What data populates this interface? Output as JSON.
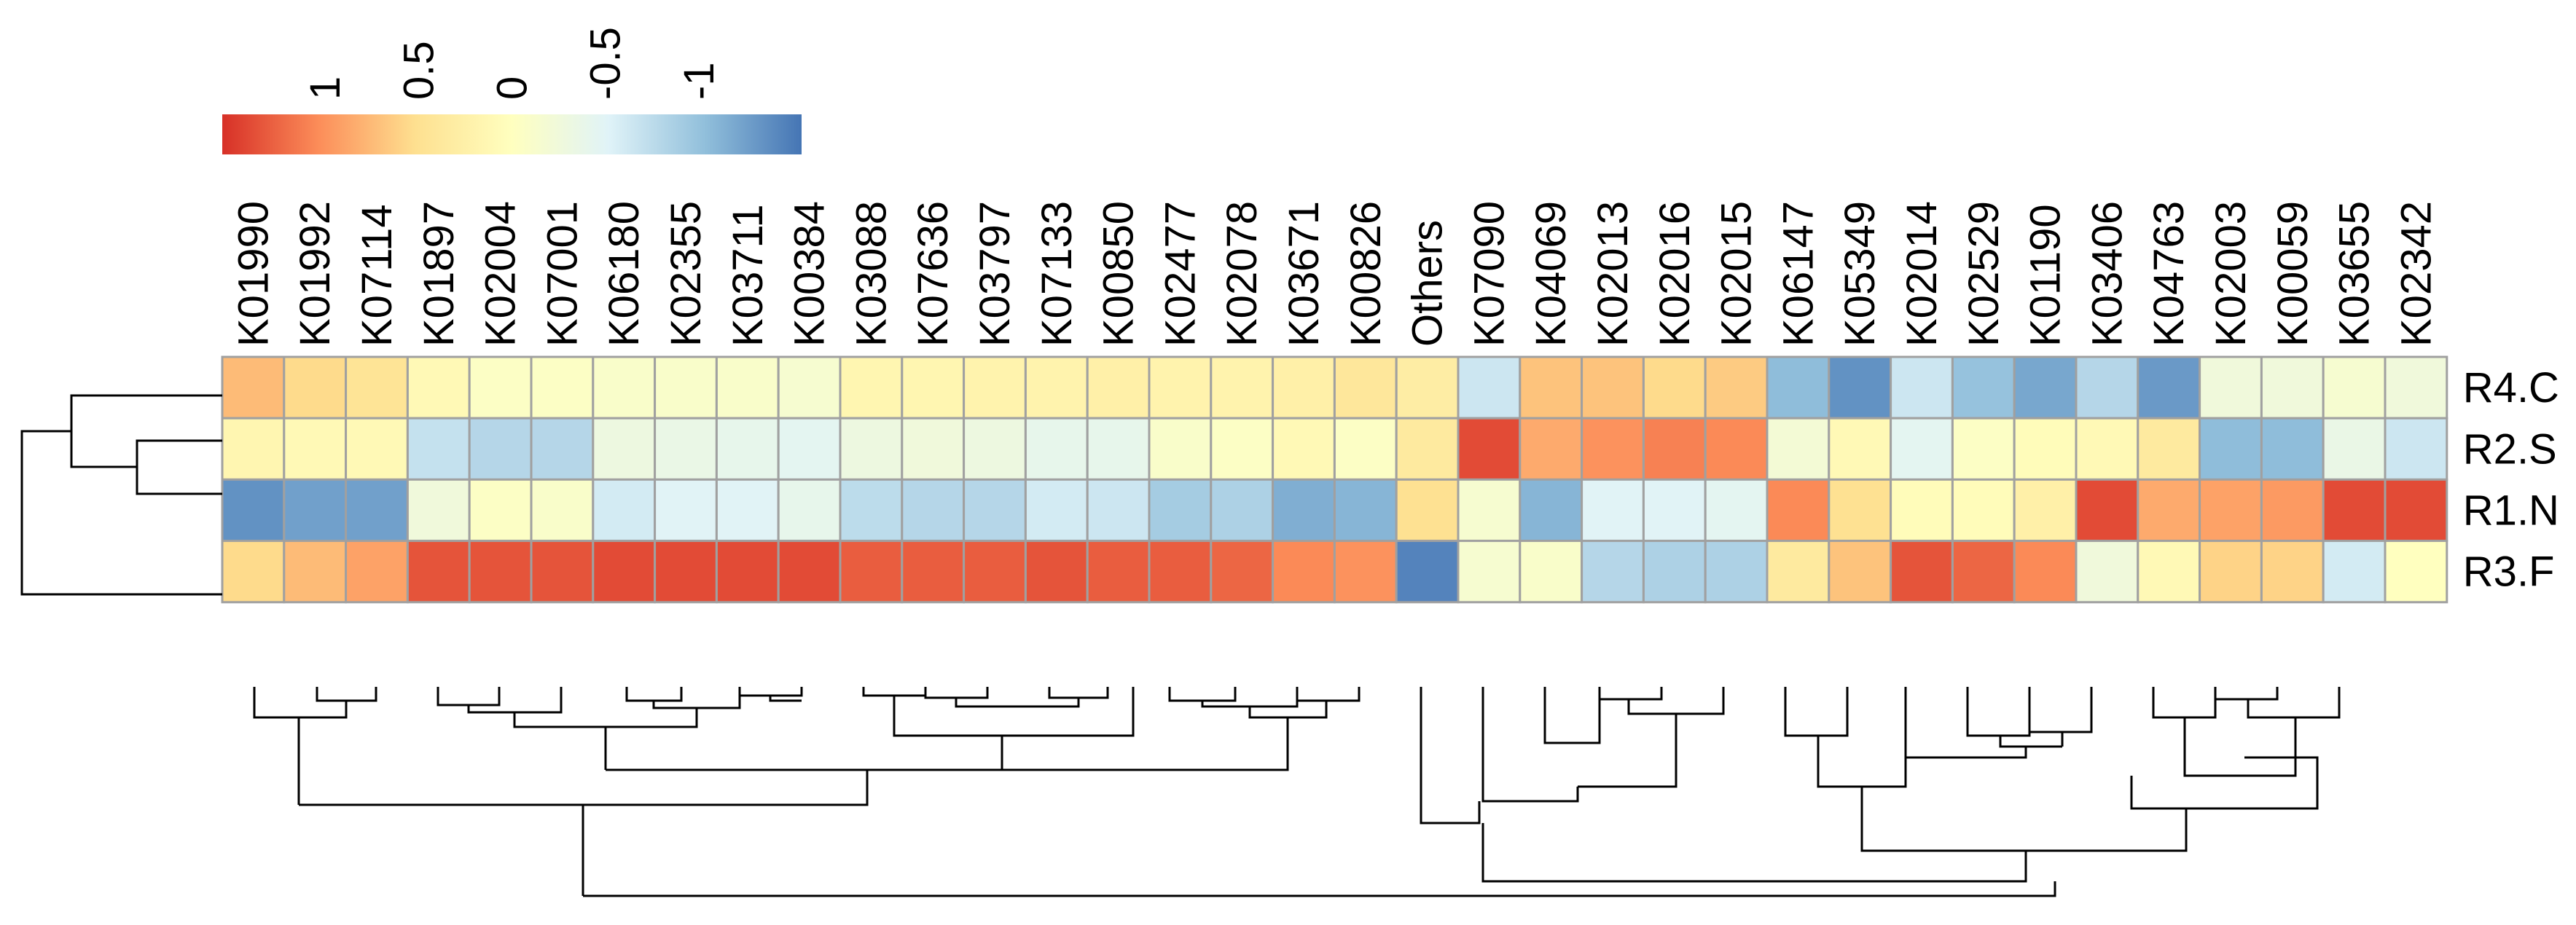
{
  "chart_data": {
    "type": "heatmap",
    "columns": [
      "K01990",
      "K01992",
      "K07114",
      "K01897",
      "K02004",
      "K07001",
      "K06180",
      "K02355",
      "K03711",
      "K00384",
      "K03088",
      "K07636",
      "K03797",
      "K07133",
      "K00850",
      "K02477",
      "K02078",
      "K03671",
      "K00826",
      "Others",
      "K07090",
      "K04069",
      "K02013",
      "K02016",
      "K02015",
      "K06147",
      "K05349",
      "K02014",
      "K02529",
      "K01190",
      "K03406",
      "K04763",
      "K02003",
      "K00059",
      "K03655",
      "K02342"
    ],
    "rows": [
      "R4.C",
      "R2.S",
      "R1.N",
      "R3.F"
    ],
    "values": [
      [
        0.75,
        0.55,
        0.45,
        0.1,
        -0.05,
        -0.05,
        -0.1,
        -0.1,
        -0.1,
        -0.15,
        0.15,
        0.15,
        0.2,
        0.2,
        0.25,
        0.2,
        0.2,
        0.25,
        0.4,
        0.3,
        -0.65,
        0.7,
        0.7,
        0.55,
        0.65,
        -1.05,
        -1.35,
        -0.65,
        -1.0,
        -1.2,
        -0.8,
        -1.3,
        -0.25,
        -0.25,
        -0.15,
        -0.25
      ],
      [
        0.15,
        0.1,
        0.1,
        -0.7,
        -0.8,
        -0.8,
        -0.3,
        -0.35,
        -0.4,
        -0.45,
        -0.3,
        -0.25,
        -0.3,
        -0.4,
        -0.4,
        -0.1,
        -0.05,
        0.1,
        -0.05,
        0.35,
        1.4,
        0.85,
        1.0,
        1.1,
        1.05,
        -0.2,
        0.1,
        -0.45,
        -0.05,
        0.05,
        0.1,
        0.35,
        -1.05,
        -1.05,
        -0.35,
        -0.65
      ],
      [
        -1.35,
        -1.25,
        -1.25,
        -0.25,
        -0.05,
        -0.1,
        -0.6,
        -0.5,
        -0.5,
        -0.4,
        -0.75,
        -0.8,
        -0.8,
        -0.6,
        -0.65,
        -0.9,
        -0.85,
        -1.15,
        -1.1,
        0.5,
        -0.15,
        -1.1,
        -0.5,
        -0.5,
        -0.45,
        1.05,
        0.5,
        0.05,
        0.05,
        0.25,
        1.4,
        0.85,
        0.9,
        0.95,
        1.4,
        1.4
      ],
      [
        0.55,
        0.75,
        0.9,
        1.35,
        1.35,
        1.35,
        1.4,
        1.4,
        1.4,
        1.4,
        1.3,
        1.3,
        1.3,
        1.35,
        1.3,
        1.3,
        1.25,
        1.05,
        1.0,
        -1.45,
        -0.15,
        -0.1,
        -0.8,
        -0.85,
        -0.85,
        0.35,
        0.7,
        1.35,
        1.25,
        1.05,
        -0.25,
        0.1,
        0.6,
        0.6,
        -0.6,
        0.0
      ]
    ],
    "colorbar": {
      "ticks": [
        "1",
        "0.5",
        "0",
        "-0.5",
        "-1"
      ],
      "tick_values": [
        1,
        0.5,
        0,
        -0.5,
        -1
      ],
      "range": [
        1.55,
        -1.55
      ],
      "colors": [
        "#d73027",
        "#fc8d59",
        "#fee090",
        "#ffffbf",
        "#e0f3f8",
        "#91bfdb",
        "#4575b4"
      ]
    },
    "row_dendrogram": true,
    "column_dendrogram": true
  }
}
